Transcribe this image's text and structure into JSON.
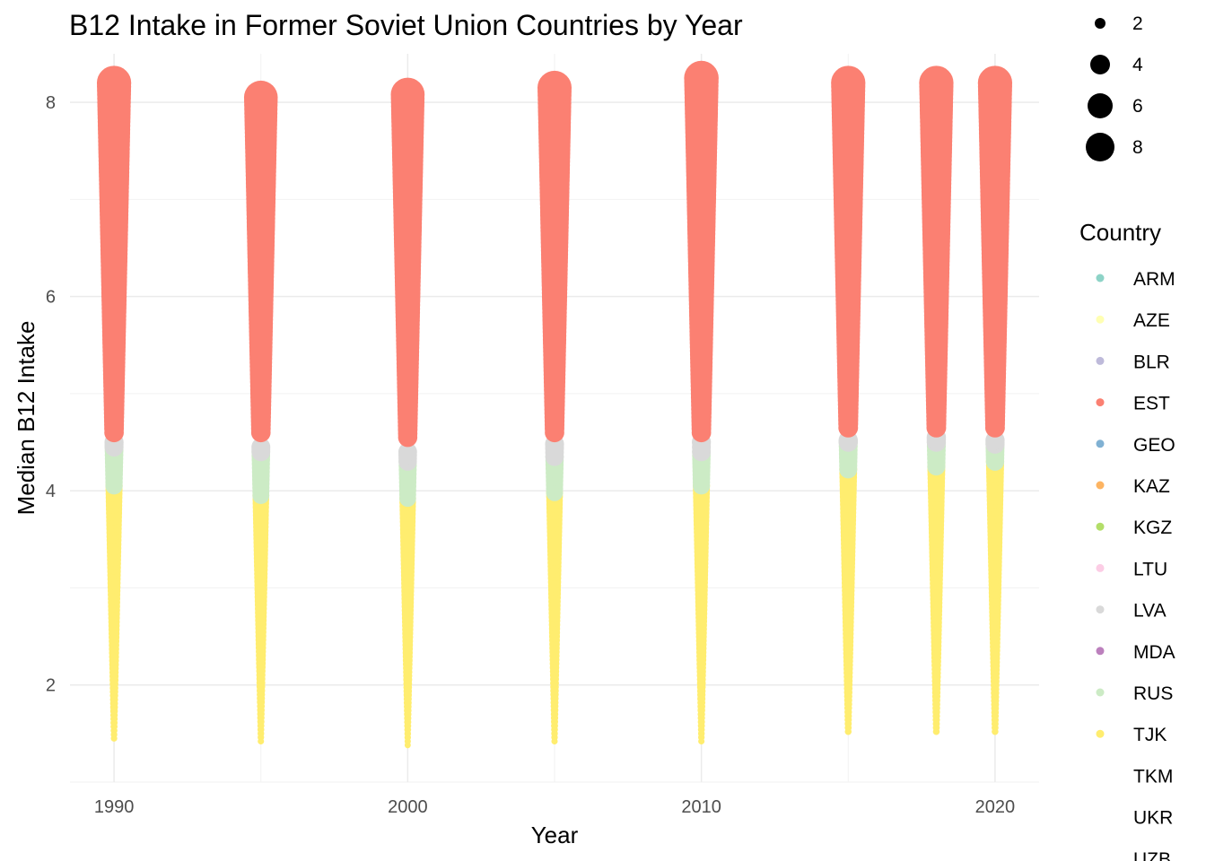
{
  "title": "B12 Intake in Former Soviet Union Countries by Year",
  "chart_data": {
    "type": "scatter",
    "title": "B12 Intake in Former Soviet Union Countries by Year",
    "xlabel": "Year",
    "ylabel": "Median B12 Intake",
    "xlim": [
      1988.5,
      2021.5
    ],
    "ylim": [
      1.0,
      8.5
    ],
    "x_ticks": [
      1990,
      2000,
      2010,
      2020
    ],
    "y_ticks": [
      2,
      4,
      6,
      8
    ],
    "grid": true,
    "legend_placement": "right",
    "size_legend": {
      "values": [
        2,
        4,
        6,
        8
      ]
    },
    "color_legend": {
      "title": "Country",
      "entries": [
        {
          "name": "ARM",
          "color": "#8DD3C7"
        },
        {
          "name": "AZE",
          "color": "#FFFFB3"
        },
        {
          "name": "BLR",
          "color": "#BEBADA"
        },
        {
          "name": "EST",
          "color": "#FB8072"
        },
        {
          "name": "GEO",
          "color": "#80B1D3"
        },
        {
          "name": "KAZ",
          "color": "#FDB462"
        },
        {
          "name": "KGZ",
          "color": "#B3DE69"
        },
        {
          "name": "LTU",
          "color": "#FCCDE5"
        },
        {
          "name": "LVA",
          "color": "#D9D9D9"
        },
        {
          "name": "MDA",
          "color": "#BC80BD"
        },
        {
          "name": "RUS",
          "color": "#CCEBC5"
        },
        {
          "name": "TJK",
          "color": "#FFED6F"
        },
        {
          "name": "TKM",
          "color": null
        },
        {
          "name": "UKR",
          "color": null
        },
        {
          "name": "UZB",
          "color": null
        }
      ]
    },
    "years": [
      1990,
      1995,
      2000,
      2005,
      2010,
      2015,
      2018,
      2020
    ],
    "series": [
      {
        "name": "TJK",
        "color": "#FFED6F",
        "ranges": [
          [
            1.45,
            4.05
          ],
          [
            1.42,
            3.95
          ],
          [
            1.38,
            3.92
          ],
          [
            1.42,
            3.98
          ],
          [
            1.42,
            4.05
          ],
          [
            1.52,
            4.22
          ],
          [
            1.52,
            4.25
          ],
          [
            1.52,
            4.3
          ]
        ]
      },
      {
        "name": "RUS",
        "color": "#CCEBC5",
        "ranges": [
          [
            4.05,
            4.45
          ],
          [
            3.95,
            4.4
          ],
          [
            3.92,
            4.3
          ],
          [
            3.98,
            4.35
          ],
          [
            4.05,
            4.4
          ],
          [
            4.22,
            4.5
          ],
          [
            4.25,
            4.5
          ],
          [
            4.3,
            4.48
          ]
        ]
      },
      {
        "name": "LVA",
        "color": "#D9D9D9",
        "ranges": [
          [
            4.45,
            4.5
          ],
          [
            4.4,
            4.45
          ],
          [
            4.3,
            4.4
          ],
          [
            4.35,
            4.48
          ],
          [
            4.4,
            4.5
          ],
          [
            4.5,
            4.52
          ],
          [
            4.5,
            4.55
          ],
          [
            4.48,
            4.52
          ]
        ]
      },
      {
        "name": "EST",
        "color": "#FB8072",
        "ranges": [
          [
            4.6,
            8.2
          ],
          [
            4.6,
            8.05
          ],
          [
            4.55,
            8.08
          ],
          [
            4.6,
            8.15
          ],
          [
            4.6,
            8.25
          ],
          [
            4.65,
            8.2
          ],
          [
            4.65,
            8.2
          ],
          [
            4.65,
            8.2
          ]
        ]
      }
    ]
  }
}
